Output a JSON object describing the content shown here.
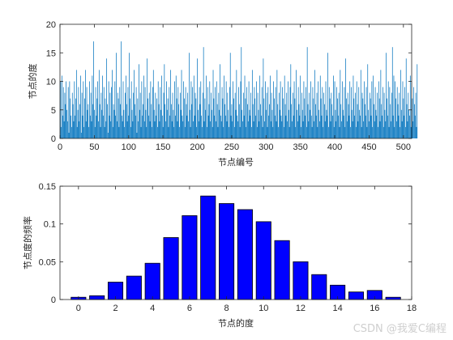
{
  "watermark": "CSDN @我爱C编程",
  "colors": {
    "stem": "#0072BD",
    "bar_fill": "#0000FF",
    "bar_edge": "#000000",
    "axis": "#262626"
  },
  "chart_data": [
    {
      "type": "bar",
      "title": "",
      "xlabel": "节点编号",
      "ylabel": "节点的度",
      "xlim": [
        0,
        512
      ],
      "ylim": [
        0,
        20
      ],
      "xticks": [
        0,
        50,
        100,
        150,
        200,
        250,
        300,
        350,
        400,
        450,
        500
      ],
      "yticks": [
        0,
        5,
        10,
        15,
        20
      ],
      "grid": false,
      "series": [
        {
          "x_start": 1,
          "x_step": 1,
          "values": [
            10,
            2,
            11,
            4,
            9,
            3,
            8,
            6,
            10,
            5,
            3,
            9,
            1,
            10,
            7,
            4,
            2,
            8,
            6,
            3,
            10,
            4,
            7,
            12,
            2,
            5,
            9,
            3,
            6,
            11,
            1,
            8,
            4,
            10,
            2,
            7,
            12,
            3,
            9,
            5,
            6,
            2,
            10,
            4,
            8,
            3,
            11,
            6,
            17,
            5,
            2,
            9,
            4,
            7,
            10,
            3,
            12,
            6,
            2,
            8,
            5,
            11,
            4,
            9,
            2,
            7,
            3,
            14,
            6,
            1,
            10,
            4,
            8,
            3,
            9,
            12,
            2,
            6,
            5,
            10,
            4,
            15,
            3,
            8,
            7,
            2,
            9,
            6,
            17,
            4,
            3,
            10,
            5,
            2,
            8,
            11,
            6,
            3,
            9,
            4,
            15,
            7,
            2,
            10,
            5,
            3,
            8,
            12,
            6,
            4,
            9,
            1,
            7,
            3,
            13,
            5,
            8,
            2,
            10,
            4,
            6,
            11,
            3,
            9,
            5,
            2,
            14,
            7,
            4,
            8,
            3,
            10,
            6,
            2,
            9,
            12,
            5,
            3,
            8,
            4,
            7,
            2,
            10,
            6,
            3,
            9,
            5,
            11,
            4,
            2,
            8,
            13,
            6,
            3,
            10,
            5,
            7,
            2,
            9,
            4,
            12,
            6,
            3,
            8,
            5,
            2,
            10,
            4,
            11,
            7,
            3,
            9,
            6,
            2,
            8,
            5,
            12,
            4,
            3,
            10,
            7,
            2,
            9,
            6,
            4,
            8,
            3,
            15,
            5,
            2,
            10,
            6,
            9,
            3,
            11,
            4,
            8,
            7,
            2,
            14,
            5,
            3,
            9,
            6,
            10,
            4,
            2,
            8,
            16,
            3,
            7,
            5,
            11,
            2,
            9,
            4,
            6,
            10,
            3,
            8,
            5,
            2,
            12,
            7,
            4,
            9,
            3,
            10,
            6,
            2,
            8,
            5,
            13,
            4,
            3,
            9,
            7,
            2,
            11,
            6,
            4,
            10,
            3,
            8,
            5,
            2,
            9,
            15,
            4,
            6,
            3,
            10,
            7,
            2,
            8,
            5,
            12,
            4,
            3,
            9,
            6,
            2,
            10,
            16,
            5,
            3,
            8,
            4,
            11,
            7,
            2,
            9,
            6,
            3,
            10,
            5,
            4,
            8,
            2,
            12,
            6,
            3,
            9,
            7,
            4,
            10,
            2,
            8,
            5,
            3,
            11,
            6,
            4,
            9,
            2,
            14,
            7,
            3,
            10,
            5,
            8,
            2,
            9,
            4,
            6,
            11,
            3,
            8,
            5,
            2,
            10,
            7,
            4,
            9,
            3,
            12,
            6,
            2,
            8,
            5,
            10,
            4,
            3,
            9,
            7,
            2,
            11,
            6,
            4,
            8,
            3,
            10,
            5,
            2,
            9,
            13,
            6,
            3,
            8,
            4,
            10,
            7,
            2,
            12,
            5,
            3,
            9,
            6,
            4,
            11,
            2,
            8,
            5,
            3,
            10,
            7,
            4,
            9,
            2,
            16,
            6,
            3,
            8,
            5,
            10,
            4,
            2,
            9,
            7,
            3,
            12,
            6,
            4,
            8,
            2,
            10,
            5,
            3,
            11,
            7,
            4,
            9,
            2,
            8,
            6,
            3,
            10,
            5,
            4,
            15,
            2,
            9,
            7,
            3,
            8,
            6,
            4,
            11,
            2,
            10,
            5,
            3,
            9,
            7,
            4,
            8,
            2,
            12,
            6,
            3,
            10,
            5,
            4,
            9,
            2,
            14,
            7,
            3,
            8,
            6,
            4,
            10,
            2,
            9,
            5,
            3,
            11,
            7,
            4,
            8,
            2,
            10,
            6,
            3,
            9,
            5,
            4,
            12,
            2,
            8,
            7,
            3,
            10,
            6,
            4,
            9,
            2,
            13,
            5,
            3,
            8,
            7,
            4,
            10,
            2,
            11,
            6,
            3,
            9,
            5,
            4,
            8,
            2,
            10,
            7,
            3,
            12,
            6,
            4,
            9,
            2,
            8,
            5,
            3,
            15,
            7,
            4,
            10,
            2,
            9,
            6,
            3,
            8,
            16,
            4,
            11,
            2,
            10,
            7,
            3,
            9,
            6,
            4,
            8,
            2,
            12,
            5,
            3,
            10,
            7,
            4,
            9,
            2,
            14,
            6,
            3,
            8,
            5,
            4,
            11,
            2,
            10,
            7,
            3,
            9,
            6,
            4,
            8,
            2,
            13
          ]
        }
      ]
    },
    {
      "type": "bar",
      "title": "",
      "xlabel": "节点的度",
      "ylabel": "节点度的频率",
      "xlim": [
        -1,
        18
      ],
      "ylim": [
        0,
        0.15
      ],
      "xticks": [
        0,
        2,
        4,
        6,
        8,
        10,
        12,
        14,
        16,
        18
      ],
      "yticks": [
        0,
        0.05,
        0.1,
        0.15
      ],
      "ytick_labels": [
        "0",
        "0.05",
        "0.1",
        "0.15"
      ],
      "grid": false,
      "categories": [
        0,
        1,
        2,
        3,
        4,
        5,
        6,
        7,
        8,
        9,
        10,
        11,
        12,
        13,
        14,
        15,
        16,
        17
      ],
      "values": [
        0.003,
        0.005,
        0.023,
        0.031,
        0.048,
        0.082,
        0.111,
        0.137,
        0.127,
        0.119,
        0.103,
        0.078,
        0.05,
        0.033,
        0.019,
        0.01,
        0.012,
        0.003
      ]
    }
  ]
}
